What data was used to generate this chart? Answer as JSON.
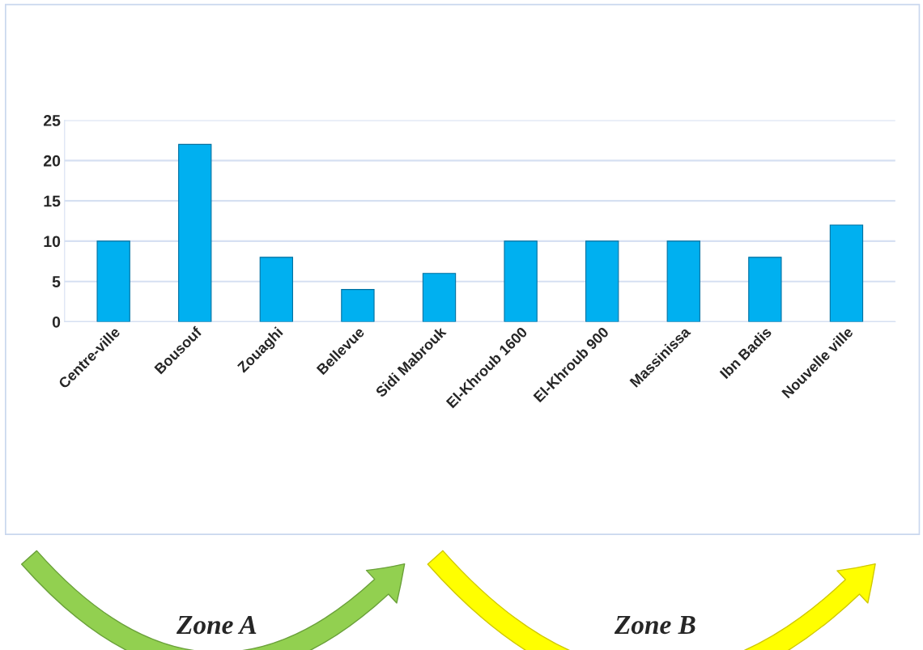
{
  "chart_data": {
    "type": "bar",
    "categories": [
      "Centre-ville",
      "Bousouf",
      "Zouaghi",
      "Bellevue",
      "Sidi Mabrouk",
      "El-Khroub 1600",
      "El-Khroub 900",
      "Massinissa",
      "Ibn Badis",
      "Nouvelle ville"
    ],
    "values": [
      10,
      22,
      8,
      4,
      6,
      10,
      10,
      10,
      8,
      12
    ],
    "color": "#00b0f0",
    "ylim": [
      0,
      25
    ],
    "yticks": [
      0,
      5,
      10,
      15,
      20,
      25
    ],
    "grid": "y",
    "annotations": [
      "Zone A",
      "Zone B"
    ]
  }
}
